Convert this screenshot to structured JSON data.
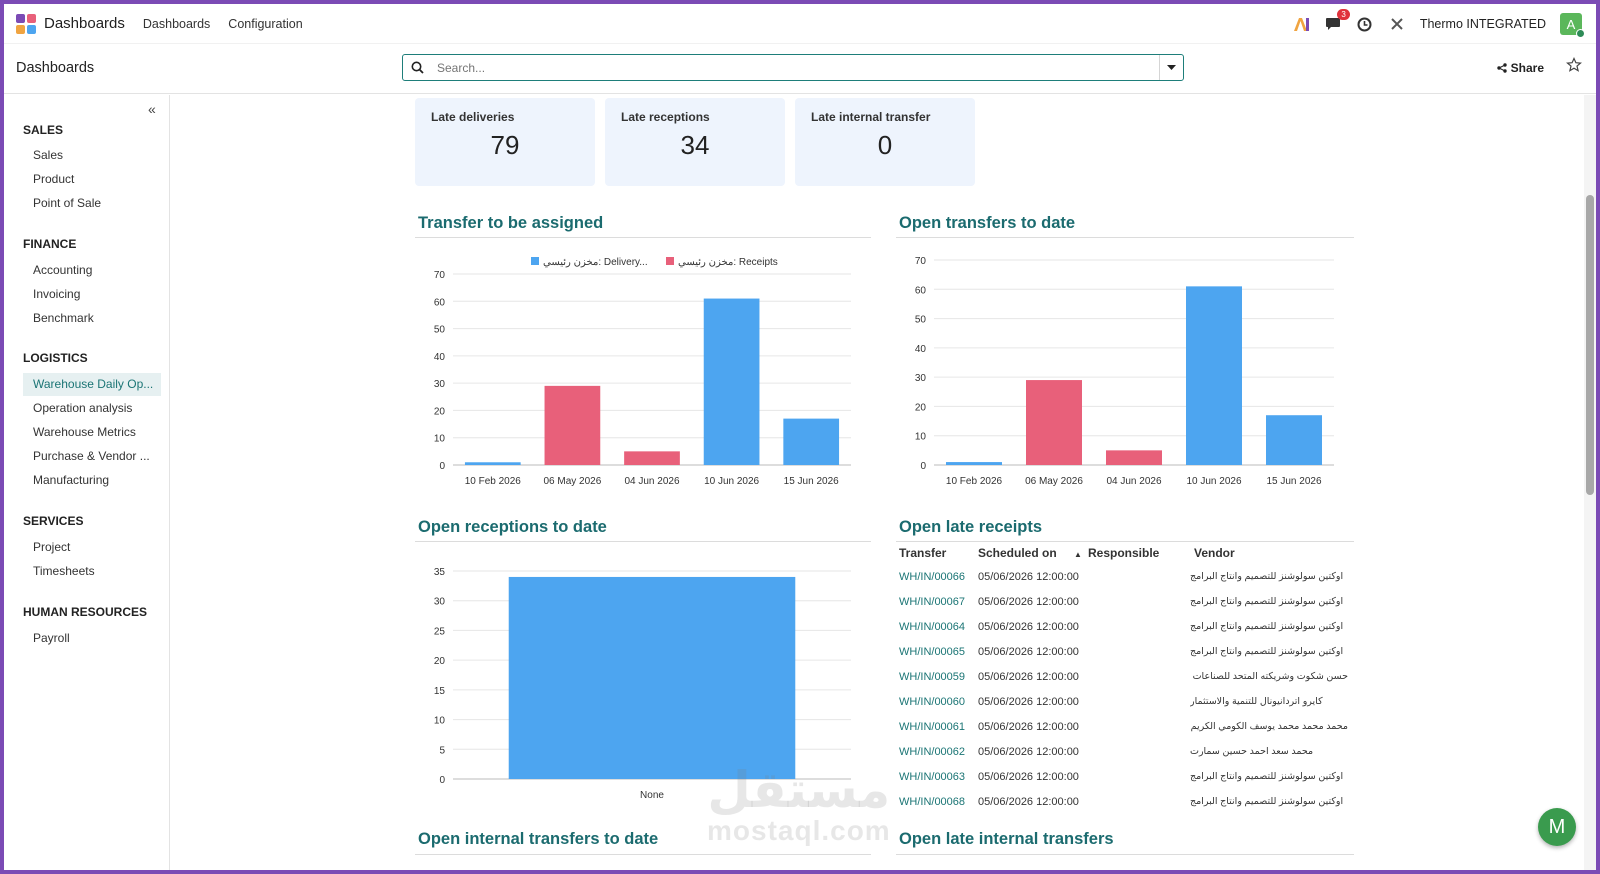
{
  "topnav": {
    "brand": "Dashboards",
    "links": [
      "Dashboards",
      "Configuration"
    ],
    "message_count": "3",
    "company": "Thermo INTEGRATED",
    "avatar_letter": "A"
  },
  "control": {
    "title": "Dashboards",
    "search_placeholder": "Search...",
    "share_label": "Share"
  },
  "sidebar": {
    "sections": [
      {
        "title": "SALES",
        "items": [
          "Sales",
          "Product",
          "Point of Sale"
        ]
      },
      {
        "title": "FINANCE",
        "items": [
          "Accounting",
          "Invoicing",
          "Benchmark"
        ]
      },
      {
        "title": "LOGISTICS",
        "items": [
          "Warehouse Daily Op...",
          "Operation analysis",
          "Warehouse Metrics",
          "Purchase & Vendor ...",
          "Manufacturing"
        ]
      },
      {
        "title": "SERVICES",
        "items": [
          "Project",
          "Timesheets"
        ]
      },
      {
        "title": "HUMAN RESOURCES",
        "items": [
          "Payroll"
        ]
      }
    ],
    "active_item": "Warehouse Daily Op..."
  },
  "kpis": [
    {
      "label": "Late deliveries",
      "value": "79"
    },
    {
      "label": "Late receptions",
      "value": "34"
    },
    {
      "label": "Late internal transfer",
      "value": "0"
    }
  ],
  "sections": {
    "transfer_assigned": "Transfer to be assigned",
    "open_transfers": "Open transfers to date",
    "open_receptions": "Open receptions to date",
    "open_late_receipts": "Open late receipts",
    "open_internal": "Open internal transfers to date",
    "open_late_internal": "Open late internal transfers"
  },
  "colors": {
    "blue": "#4da5f0",
    "red": "#e8607a",
    "teal": "#1b6b6f"
  },
  "chart_data": [
    {
      "type": "bar",
      "categories": [
        "10 Feb 2026",
        "06 May 2026",
        "04 Jun 2026",
        "10 Jun 2026",
        "15 Jun 2026"
      ],
      "values": [
        1,
        29,
        5,
        61,
        17
      ],
      "bar_series": [
        0,
        1,
        1,
        0,
        0
      ],
      "series": [
        {
          "name": "مخزن رئيسي: Delivery..."
        },
        {
          "name": "مخزن رئيسي: Receipts"
        }
      ],
      "ylim": [
        0,
        70
      ],
      "yticks": [
        0,
        10,
        20,
        30,
        40,
        50,
        60,
        70
      ],
      "legend": "top-center"
    },
    {
      "type": "bar",
      "categories": [
        "10 Feb 2026",
        "06 May 2026",
        "04 Jun 2026",
        "10 Jun 2026",
        "15 Jun 2026"
      ],
      "values": [
        1,
        29,
        5,
        61,
        17
      ],
      "bar_series": [
        0,
        1,
        1,
        0,
        0
      ],
      "ylim": [
        0,
        70
      ],
      "yticks": [
        0,
        10,
        20,
        30,
        40,
        50,
        60,
        70
      ]
    },
    {
      "type": "bar",
      "categories": [
        "None"
      ],
      "values": [
        34
      ],
      "bar_series": [
        0
      ],
      "ylim": [
        0,
        35
      ],
      "yticks": [
        0,
        5,
        10,
        15,
        20,
        25,
        30,
        35
      ]
    }
  ],
  "late_receipts": {
    "headers": [
      "Transfer",
      "Scheduled on",
      "Responsible",
      "Vendor"
    ],
    "rows": [
      {
        "transfer": "WH/IN/00066",
        "scheduled": "05/06/2026 12:00:00 ",
        "vendor": "اوكتين سولوشنز للتصميم وانتاج البرامج"
      },
      {
        "transfer": "WH/IN/00067",
        "scheduled": "05/06/2026 12:00:00 ",
        "vendor": "اوكتين سولوشنز للتصميم وانتاج البرامج"
      },
      {
        "transfer": "WH/IN/00064",
        "scheduled": "05/06/2026 12:00:00 ",
        "vendor": "اوكتين سولوشنز للتصميم وانتاج البرامج"
      },
      {
        "transfer": "WH/IN/00065",
        "scheduled": "05/06/2026 12:00:00 ",
        "vendor": "اوكتين سولوشنز للتصميم وانتاج البرامج"
      },
      {
        "transfer": "WH/IN/00059",
        "scheduled": "05/06/2026 12:00:00 ",
        "vendor": "حسن شكوت وشريكته المتحد للصناعات المعدنية"
      },
      {
        "transfer": "WH/IN/00060",
        "scheduled": "05/06/2026 12:00:00 ",
        "vendor": "كايرو اتردانيونال للتنمية والاستثمار"
      },
      {
        "transfer": "WH/IN/00061",
        "scheduled": "05/06/2026 12:00:00 ",
        "vendor": "محمد محمد محمد يوسف الكومي الكريم للبويات"
      },
      {
        "transfer": "WH/IN/00062",
        "scheduled": "05/06/2026 12:00:00 ",
        "vendor": "محمد سعد احمد حسين سمارت"
      },
      {
        "transfer": "WH/IN/00063",
        "scheduled": "05/06/2026 12:00:00 ",
        "vendor": "اوكتين سولوشنز للتصميم وانتاج البرامج"
      },
      {
        "transfer": "WH/IN/00068",
        "scheduled": "05/06/2026 12:00:00 ",
        "vendor": "اوكتين سولوشنز للتصميم وانتاج البرامج"
      }
    ]
  },
  "watermark": {
    "arabic": "مستقل",
    "latin": "mostaql.com"
  },
  "fab_letter": "M"
}
